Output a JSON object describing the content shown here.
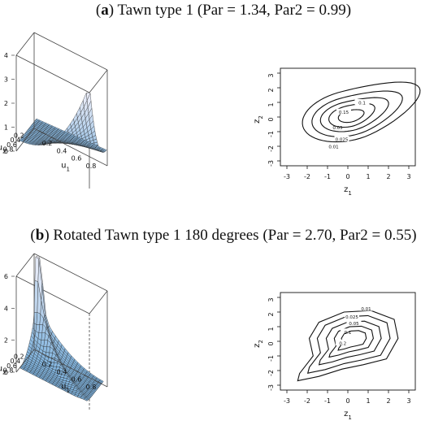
{
  "panels": [
    {
      "letter": "a",
      "caption": "Tawn type 1 (Par = 1.34, Par2 = 0.99)",
      "surface": {
        "zticks": [
          "0",
          "1",
          "2",
          "3",
          "4"
        ],
        "u1ticks": [
          "0.2",
          "0.4",
          "0.6",
          "0.8"
        ],
        "u2ticks": [
          "0.2",
          "0.4",
          "0.6",
          "0.8"
        ],
        "u1label": "u",
        "u1sub": "1",
        "u2label": "u",
        "u2sub": "2"
      },
      "contour": {
        "xticks": [
          "-3",
          "-2",
          "-1",
          "0",
          "1",
          "2",
          "3"
        ],
        "yticks": [
          "-3",
          "-2",
          "-1",
          "0",
          "1",
          "2",
          "3"
        ],
        "xlabel": "z",
        "xsub": "1",
        "ylabel": "z",
        "ysub": "2",
        "levels": [
          "0.01",
          "0.025",
          "0.05",
          "0.1",
          "0.15"
        ]
      }
    },
    {
      "letter": "b",
      "caption": "Rotated Tawn type 1 180 degrees (Par = 2.70, Par2 = 0.55)",
      "surface": {
        "zticks": [
          "0",
          "2",
          "4",
          "6"
        ],
        "u1ticks": [
          "0.2",
          "0.4",
          "0.6",
          "0.8"
        ],
        "u2ticks": [
          "0.2",
          "0.4",
          "0.6",
          "0.8"
        ],
        "u1label": "u",
        "u1sub": "1",
        "u2label": "u",
        "u2sub": "2"
      },
      "contour": {
        "xticks": [
          "-3",
          "-2",
          "-1",
          "0",
          "1",
          "2",
          "3"
        ],
        "yticks": [
          "-3",
          "-2",
          "-1",
          "0",
          "1",
          "2",
          "3"
        ],
        "xlabel": "z",
        "xsub": "1",
        "ylabel": "z",
        "ysub": "2",
        "levels": [
          "0.01",
          "0.025",
          "0.05",
          "0.1",
          "0.2"
        ]
      }
    }
  ],
  "chart_data": [
    {
      "type": "surface",
      "title": "Tawn type 1 (Par = 1.34, Par2 = 0.99)",
      "xlabel": "u1",
      "ylabel": "u2",
      "zlim": [
        0,
        4
      ],
      "peak_at": [
        1,
        1
      ],
      "peak_value": 4
    },
    {
      "type": "contour",
      "title": "Tawn type 1 (Par = 1.34, Par2 = 0.99)",
      "xlabel": "z1",
      "ylabel": "z2",
      "xlim": [
        -3,
        3
      ],
      "ylim": [
        -3,
        3
      ],
      "levels": [
        0.01,
        0.025,
        0.05,
        0.1,
        0.15
      ]
    },
    {
      "type": "surface",
      "title": "Rotated Tawn type 1 180 degrees (Par = 2.70, Par2 = 0.55)",
      "xlabel": "u1",
      "ylabel": "u2",
      "zlim": [
        0,
        6
      ],
      "peak_at": [
        0,
        0
      ],
      "peak_value": 6
    },
    {
      "type": "contour",
      "title": "Rotated Tawn type 1 180 degrees (Par = 2.70, Par2 = 0.55)",
      "xlabel": "z1",
      "ylabel": "z2",
      "xlim": [
        -3,
        3
      ],
      "ylim": [
        -3,
        3
      ],
      "levels": [
        0.01,
        0.025,
        0.05,
        0.1,
        0.2
      ]
    }
  ]
}
